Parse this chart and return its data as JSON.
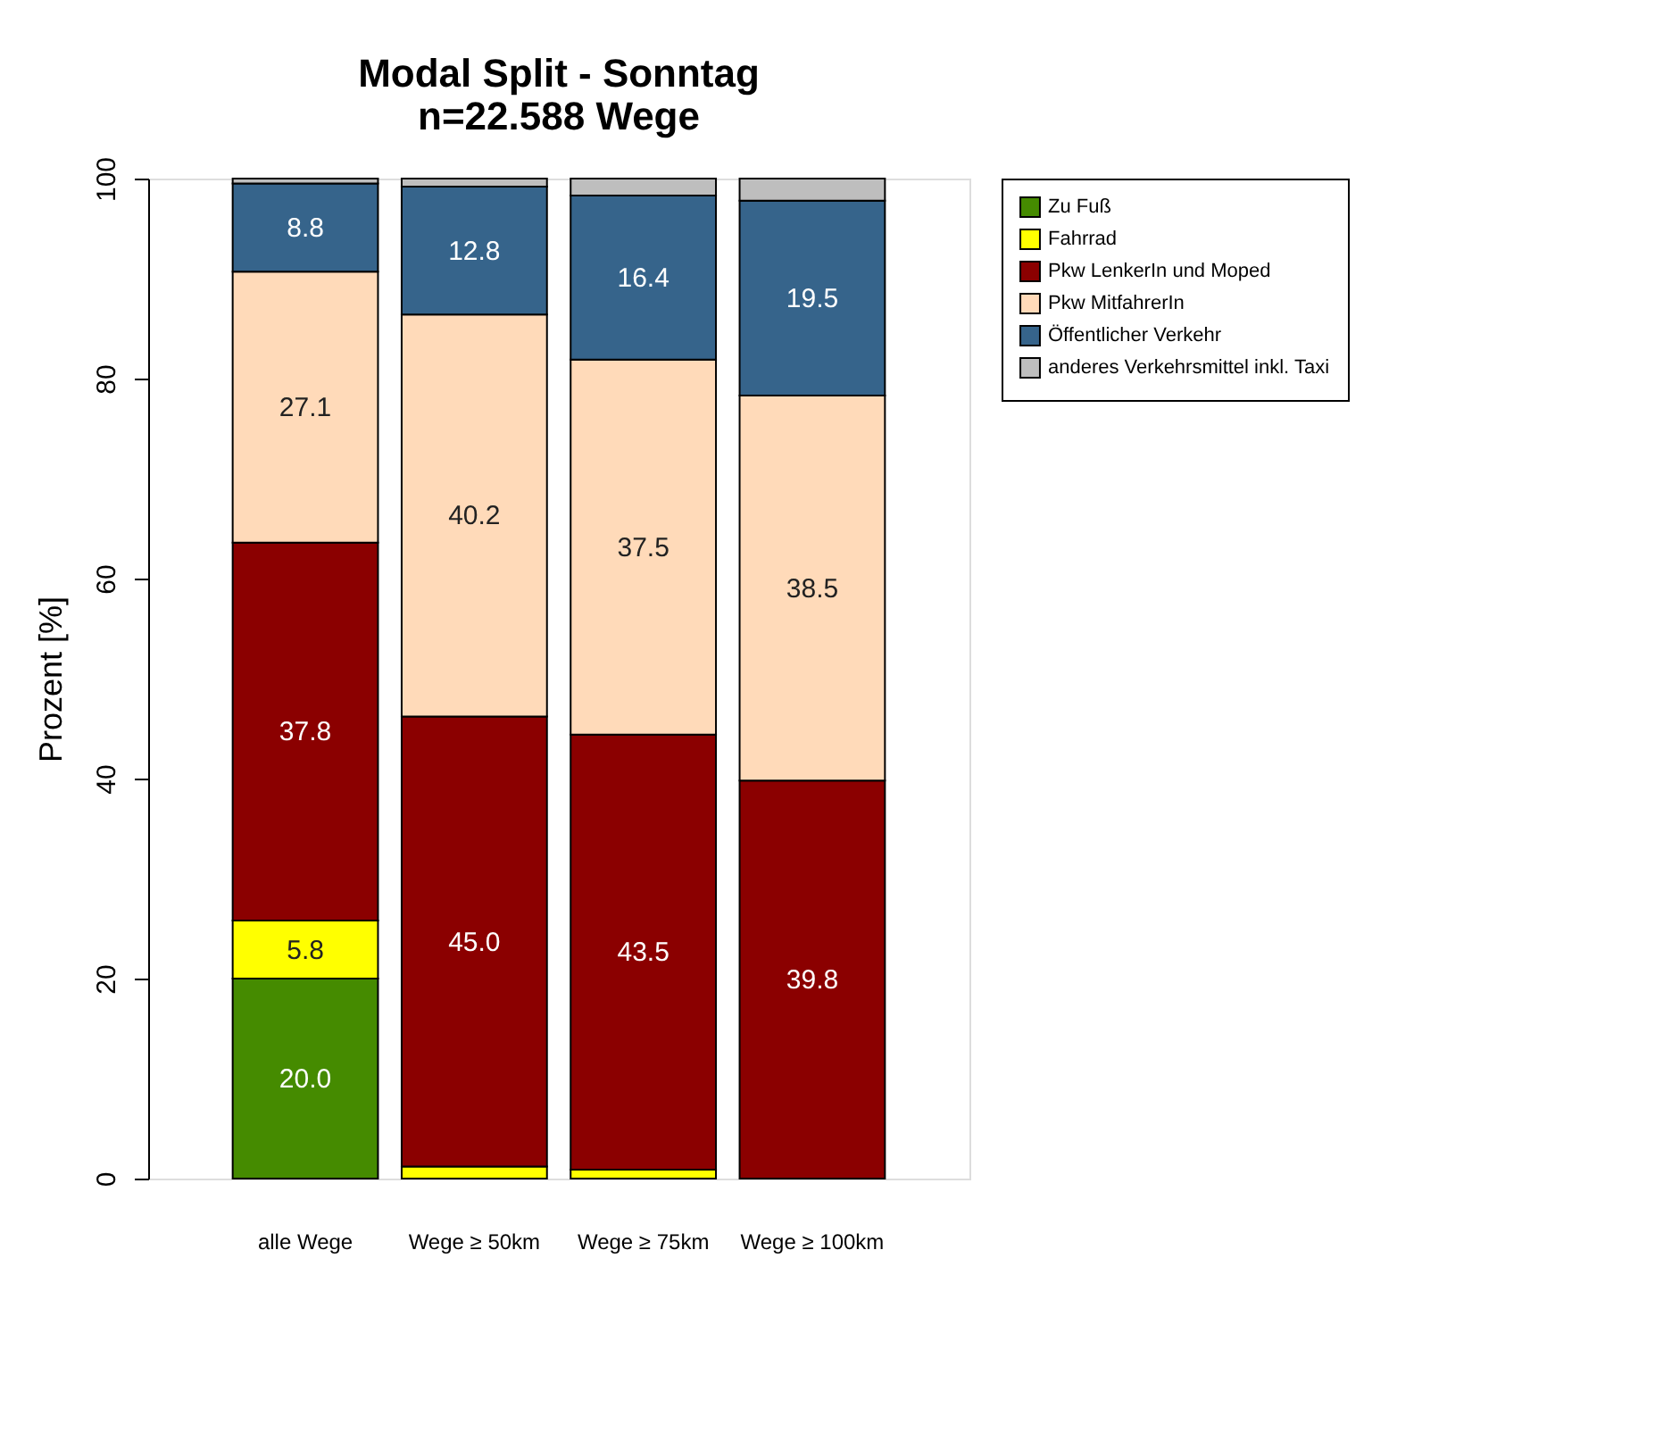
{
  "chart_data": {
    "type": "bar",
    "title": "Modal Split - Sonntag\nn=22.588 Wege",
    "ylabel": "Prozent [%]",
    "categories": [
      "alle Wege",
      "Wege ≥ 50km",
      "Wege ≥ 75km",
      "Wege ≥ 100km"
    ],
    "stacked": true,
    "ylim": [
      0,
      100
    ],
    "yticks": [
      0,
      20,
      40,
      60,
      80,
      100
    ],
    "grid": false,
    "legend": "right",
    "series": [
      {
        "name": "Zu Fuß",
        "color": "#458b00",
        "values": [
          20.0,
          0,
          0,
          0
        ],
        "value_labels": [
          "20.0",
          null,
          null,
          null
        ]
      },
      {
        "name": "Fahrrad",
        "color": "#ffff00",
        "values": [
          5.8,
          1.2,
          0.9,
          0
        ],
        "value_labels": [
          "5.8",
          null,
          null,
          null
        ]
      },
      {
        "name": "Pkw LenkerIn und Moped",
        "color": "#8b0000",
        "values": [
          37.8,
          45.0,
          43.5,
          39.8
        ],
        "value_labels": [
          "37.8",
          "45.0",
          "43.5",
          "39.8"
        ]
      },
      {
        "name": "Pkw MitfahrerIn",
        "color": "#ffdab9",
        "values": [
          27.1,
          40.2,
          37.5,
          38.5
        ],
        "value_labels": [
          "27.1",
          "40.2",
          "37.5",
          "38.5"
        ]
      },
      {
        "name": "Öffentlicher Verkehr",
        "color": "#36648b",
        "values": [
          8.8,
          12.8,
          16.4,
          19.5
        ],
        "value_labels": [
          "8.8",
          "12.8",
          "16.4",
          "19.5"
        ]
      },
      {
        "name": "anderes Verkehrsmittel inkl. Taxi",
        "color": "#bebebe",
        "values": [
          0.5,
          0.8,
          1.7,
          2.2
        ],
        "value_labels": [
          null,
          null,
          null,
          null
        ]
      }
    ]
  }
}
